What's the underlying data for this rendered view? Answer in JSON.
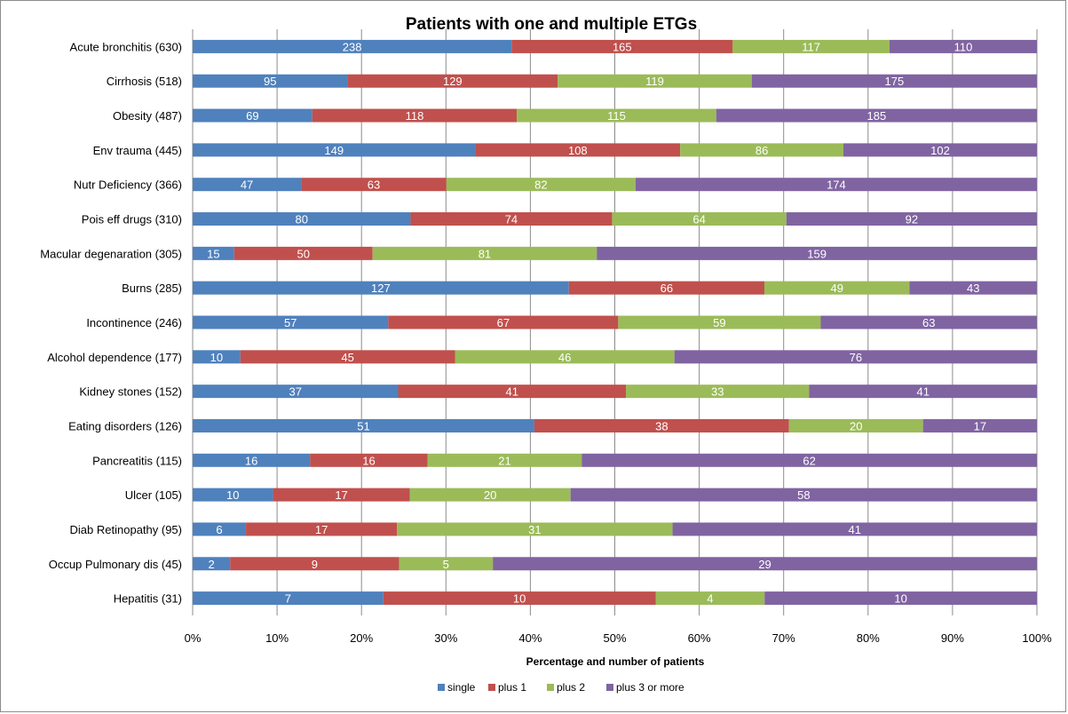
{
  "chart_data": {
    "type": "bar",
    "orientation": "horizontal",
    "stacked": "percent",
    "title": "Patients with one and multiple ETGs",
    "xlabel": "Percentage and number of patients",
    "ylabel": "",
    "xlim": [
      0,
      100
    ],
    "xticks": [
      "0%",
      "10%",
      "20%",
      "30%",
      "40%",
      "50%",
      "60%",
      "70%",
      "80%",
      "90%",
      "100%"
    ],
    "grid": true,
    "legend_position": "bottom",
    "categories": [
      "Acute bronchitis (630)",
      "Cirrhosis (518)",
      "Obesity (487)",
      "Env trauma (445)",
      "Nutr Deficiency (366)",
      "Pois eff drugs (310)",
      "Macular degenaration (305)",
      "Burns (285)",
      "Incontinence (246)",
      "Alcohol dependence (177)",
      "Kidney stones (152)",
      "Eating disorders (126)",
      "Pancreatitis (115)",
      "Ulcer (105)",
      "Diab Retinopathy (95)",
      "Occup Pulmonary dis (45)",
      "Hepatitis (31)"
    ],
    "series": [
      {
        "name": "single",
        "color": "#4f81bd",
        "values": [
          238,
          95,
          69,
          149,
          47,
          80,
          15,
          127,
          57,
          10,
          37,
          51,
          16,
          10,
          6,
          2,
          7
        ]
      },
      {
        "name": "plus 1",
        "color": "#c0504d",
        "values": [
          165,
          129,
          118,
          108,
          63,
          74,
          50,
          66,
          67,
          45,
          41,
          38,
          16,
          17,
          17,
          9,
          10
        ]
      },
      {
        "name": "plus 2",
        "color": "#9bbb59",
        "values": [
          117,
          119,
          115,
          86,
          82,
          64,
          81,
          49,
          59,
          46,
          33,
          20,
          21,
          20,
          31,
          5,
          4
        ]
      },
      {
        "name": "plus 3 or more",
        "color": "#8064a2",
        "values": [
          110,
          175,
          185,
          102,
          174,
          92,
          159,
          43,
          63,
          76,
          41,
          17,
          62,
          58,
          41,
          29,
          10
        ]
      }
    ]
  }
}
